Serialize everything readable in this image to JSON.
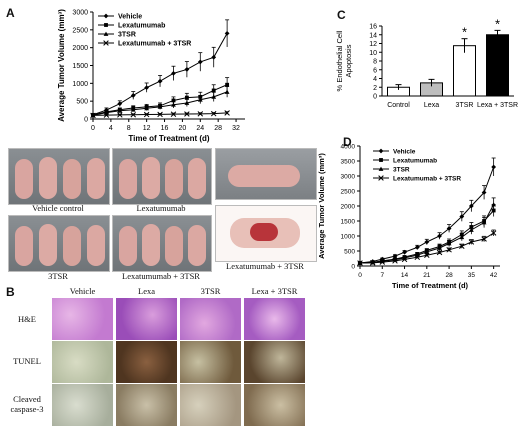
{
  "panel_labels": {
    "a": "A",
    "b": "B",
    "c": "C",
    "d": "D"
  },
  "chart_data": [
    {
      "id": "A",
      "type": "line",
      "xlabel": "Time of Treatment (d)",
      "ylabel": "Average Tumor Volume (mm³)",
      "xlim": [
        0,
        34
      ],
      "ylim": [
        0,
        3000
      ],
      "xticks": [
        0,
        4,
        8,
        12,
        16,
        20,
        24,
        28,
        32
      ],
      "yticks": [
        0,
        500,
        1000,
        1500,
        2000,
        2500,
        3000
      ],
      "x": [
        0,
        3,
        6,
        9,
        12,
        15,
        18,
        21,
        24,
        27,
        30
      ],
      "series": [
        {
          "name": "Vehicle",
          "marker": "diamond",
          "values": [
            120,
            250,
            430,
            660,
            880,
            1060,
            1280,
            1390,
            1600,
            1730,
            2400
          ],
          "errors": [
            30,
            60,
            80,
            110,
            130,
            160,
            200,
            220,
            260,
            280,
            380
          ]
        },
        {
          "name": "Lexatumumab",
          "marker": "square",
          "values": [
            110,
            200,
            260,
            310,
            340,
            370,
            520,
            600,
            620,
            800,
            960
          ],
          "errors": [
            25,
            40,
            50,
            60,
            70,
            80,
            100,
            120,
            130,
            160,
            200
          ]
        },
        {
          "name": "3TSR",
          "marker": "triangle",
          "values": [
            100,
            180,
            230,
            260,
            300,
            340,
            400,
            450,
            540,
            620,
            760
          ],
          "errors": [
            20,
            30,
            40,
            50,
            60,
            70,
            90,
            100,
            110,
            130,
            150
          ]
        },
        {
          "name": "Lexatumumab + 3TSR",
          "marker": "x",
          "values": [
            100,
            110,
            115,
            120,
            125,
            130,
            135,
            140,
            145,
            150,
            170
          ],
          "errors": [
            15,
            20,
            20,
            25,
            25,
            25,
            30,
            30,
            30,
            30,
            35
          ]
        }
      ]
    },
    {
      "id": "C",
      "type": "bar",
      "ylabel_lines": [
        "% Endothelial Cell",
        "Apoptosis"
      ],
      "ylim": [
        0,
        16
      ],
      "yticks": [
        0,
        2,
        4,
        6,
        8,
        10,
        12,
        14,
        16
      ],
      "categories": [
        "Control",
        "Lexa",
        "3TSR",
        "Lexa + 3TSR"
      ],
      "values": [
        2.0,
        3.0,
        11.5,
        14.0
      ],
      "errors": [
        0.6,
        0.8,
        1.6,
        1.0
      ],
      "colors": [
        "#ffffff",
        "#bdbdbd",
        "#ffffff",
        "#000000"
      ],
      "significance": [
        "",
        "",
        "*",
        "*"
      ]
    },
    {
      "id": "D",
      "type": "line",
      "xlabel": "Time of Treatment (d)",
      "ylabel": "Average Tumor Volume (mm³)",
      "xlim": [
        0,
        44
      ],
      "ylim": [
        0,
        4000
      ],
      "xticks": [
        0,
        7,
        14,
        21,
        28,
        35,
        42
      ],
      "yticks": [
        0,
        500,
        1000,
        1500,
        2000,
        2500,
        3000,
        3500,
        4000
      ],
      "x": [
        0,
        4,
        7,
        11,
        14,
        18,
        21,
        25,
        28,
        32,
        35,
        39,
        42
      ],
      "series": [
        {
          "name": "Vehicle",
          "marker": "diamond",
          "values": [
            100,
            150,
            230,
            330,
            460,
            620,
            800,
            1000,
            1250,
            1650,
            2000,
            2450,
            3300
          ],
          "errors": [
            20,
            25,
            35,
            45,
            55,
            70,
            90,
            110,
            130,
            160,
            190,
            230,
            300
          ]
        },
        {
          "name": "Lexatumumab",
          "marker": "square",
          "values": [
            100,
            120,
            170,
            230,
            300,
            400,
            520,
            650,
            800,
            1050,
            1300,
            1500,
            1850
          ],
          "errors": [
            15,
            20,
            25,
            30,
            40,
            50,
            60,
            80,
            100,
            120,
            150,
            170,
            200
          ]
        },
        {
          "name": "3TSR",
          "marker": "triangle",
          "values": [
            100,
            115,
            160,
            210,
            270,
            360,
            470,
            600,
            750,
            960,
            1200,
            1450,
            2050
          ],
          "errors": [
            15,
            20,
            25,
            30,
            40,
            50,
            60,
            80,
            100,
            120,
            140,
            170,
            220
          ]
        },
        {
          "name": "Lexatumumab + 3TSR",
          "marker": "x",
          "values": [
            100,
            105,
            130,
            170,
            220,
            290,
            360,
            450,
            540,
            660,
            800,
            900,
            1100
          ],
          "errors": [
            15,
            15,
            20,
            25,
            30,
            35,
            40,
            50,
            60,
            70,
            80,
            90,
            100
          ]
        }
      ]
    }
  ],
  "photos": {
    "captions": [
      "Vehicle control",
      "Lexatumumab",
      "3TSR",
      "Lexatumumab + 3TSR",
      "Lexatumumab + 3TSR"
    ]
  },
  "histology": {
    "columns": [
      "Vehicle",
      "Lexa",
      "3TSR",
      "Lexa + 3TSR"
    ],
    "rows": [
      "H&E",
      "TUNEL",
      "Cleaved caspase-3"
    ]
  }
}
